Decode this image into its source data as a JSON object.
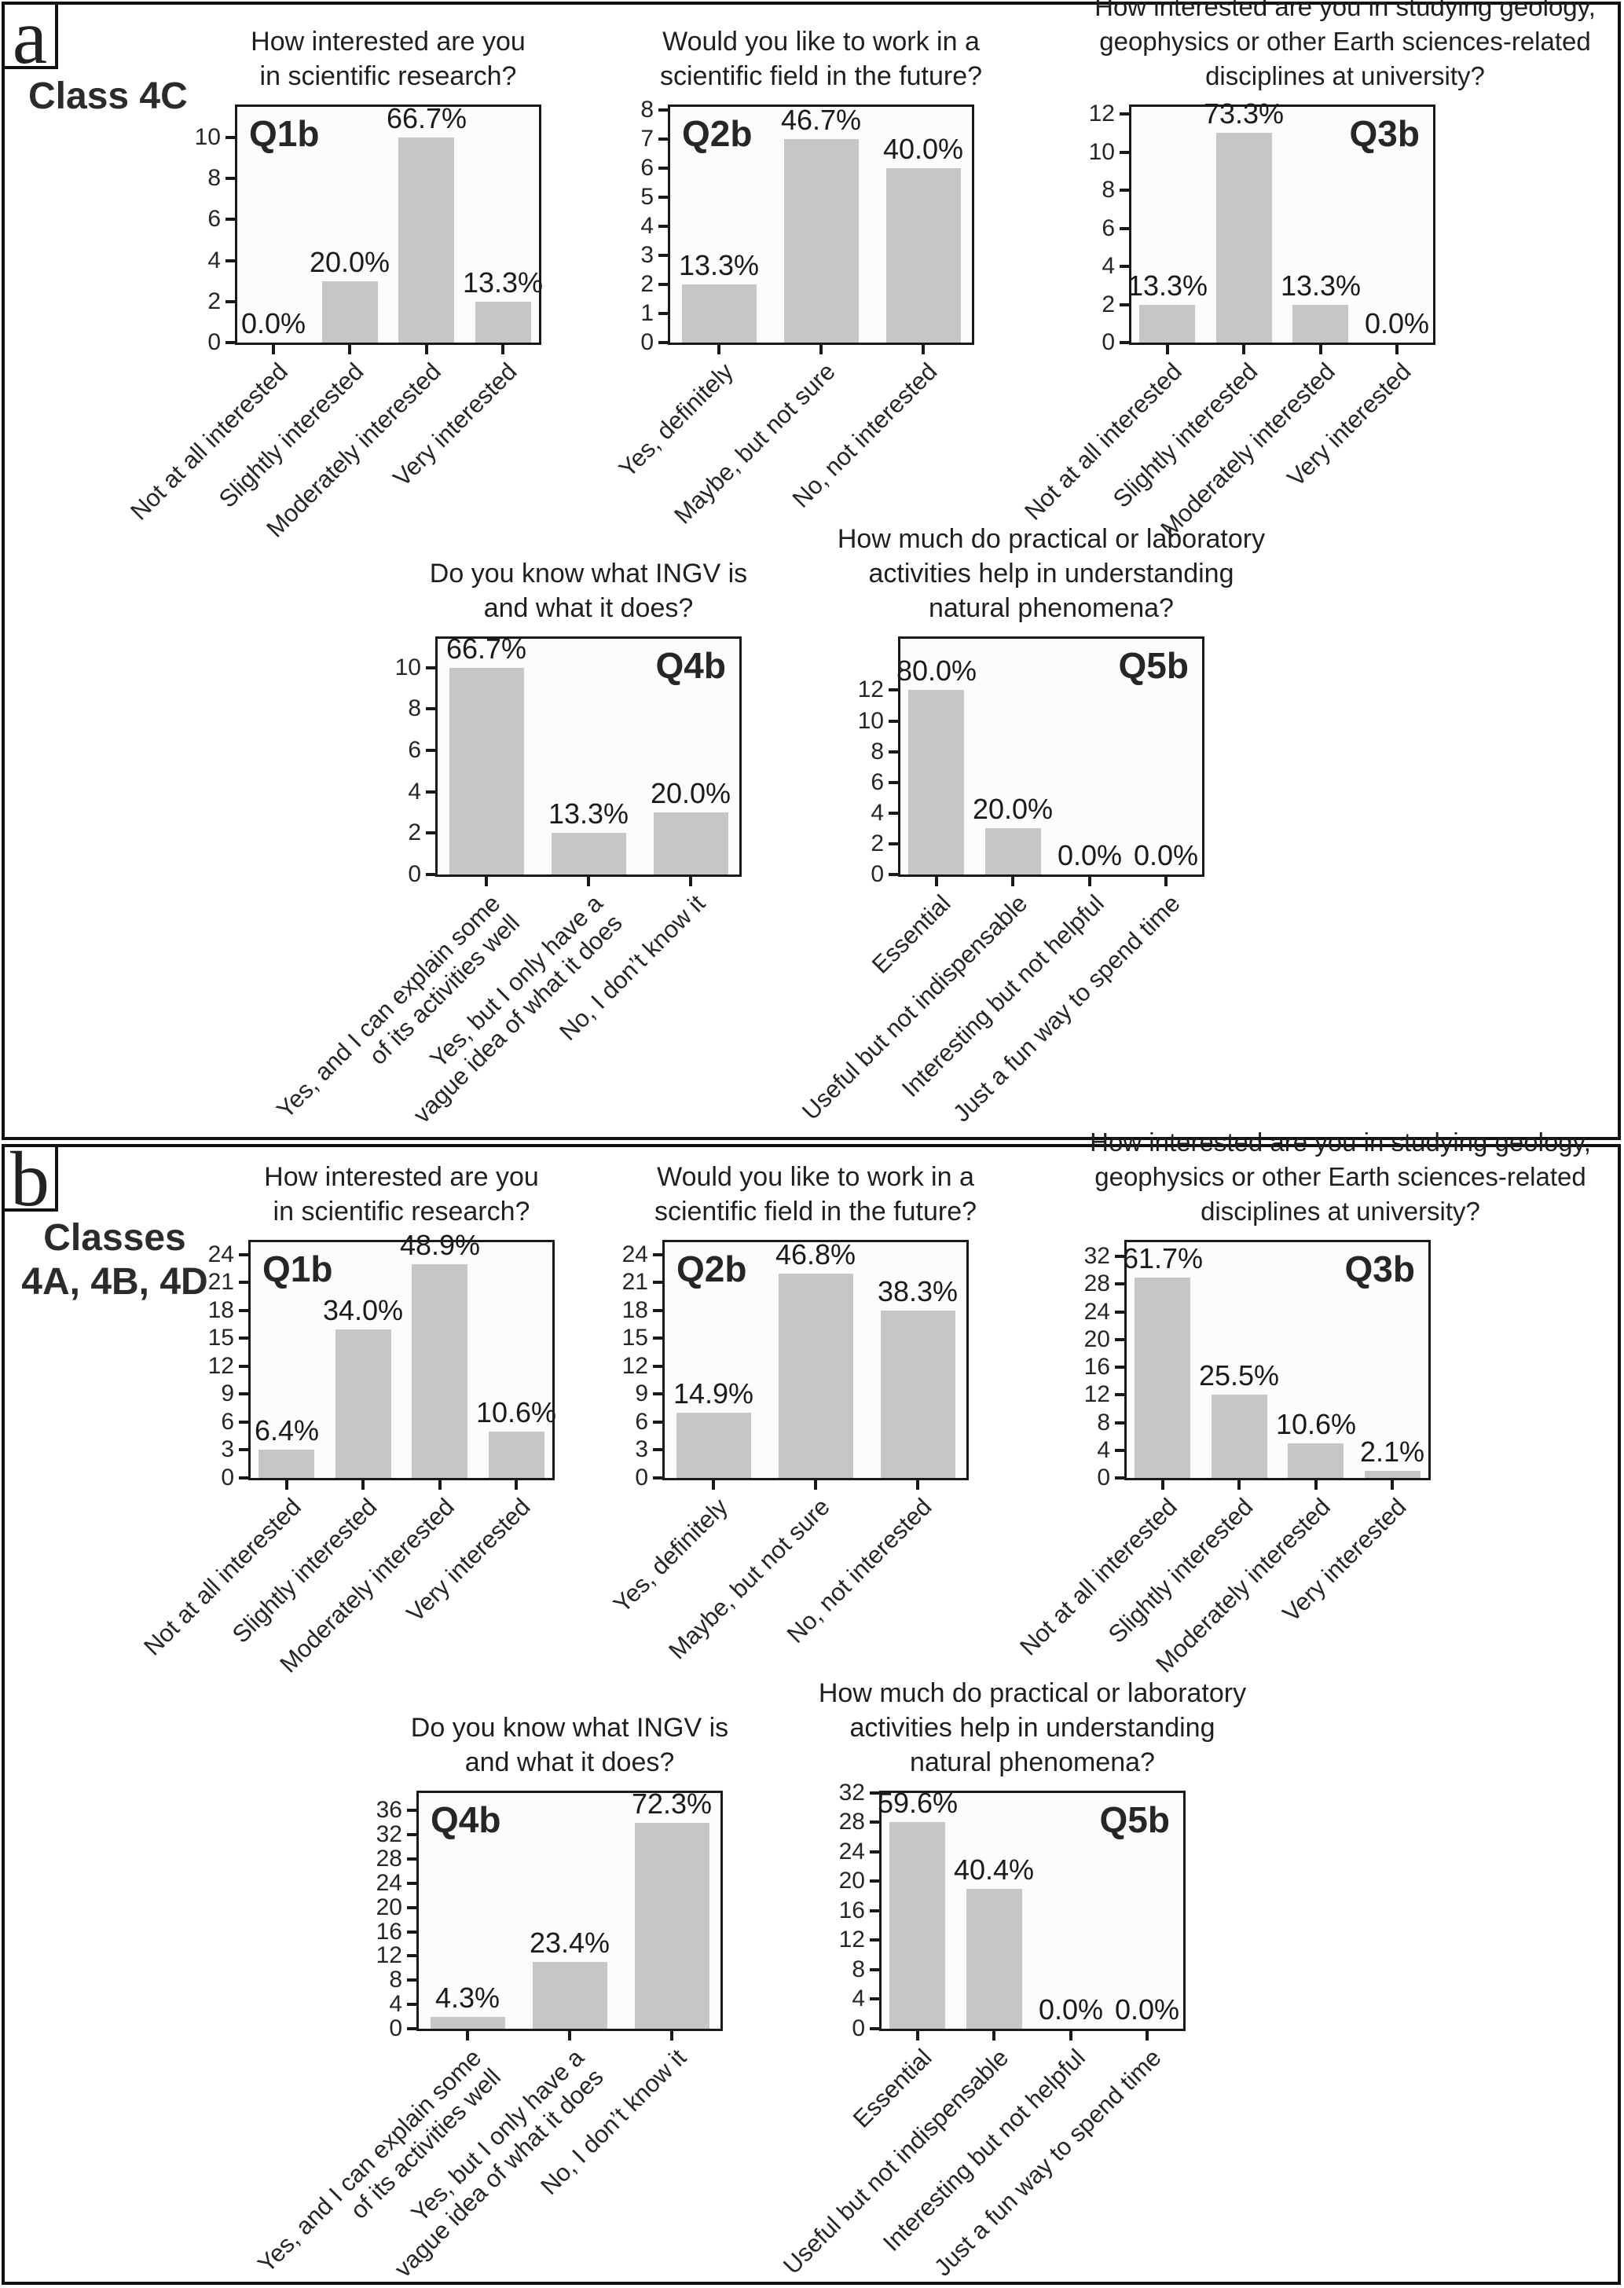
{
  "figure": {
    "panels": [
      {
        "id": "a",
        "corner_label": "a",
        "class_label_lines": [
          "Class 4C"
        ]
      },
      {
        "id": "b",
        "corner_label": "b",
        "class_label_lines": [
          "Classes",
          "4A, 4B, 4D"
        ]
      }
    ]
  },
  "colors": {
    "bar": "#c6c6c6",
    "axis": "#1a1a1a",
    "plot_background": "#fcfcfc",
    "panel_border": "#111111"
  },
  "chart_data": [
    {
      "id": "a-q1b",
      "panel": "a",
      "type": "bar",
      "q_label": "Q1b",
      "q_label_side": "left",
      "title": "How interested are you\nin scientific research?",
      "categories": [
        "Not at all interested",
        "Slightly interested",
        "Moderately interested",
        "Very interested"
      ],
      "values": [
        0,
        3,
        10,
        2
      ],
      "pct_labels": [
        "0.0%",
        "20.0%",
        "66.7%",
        "13.3%"
      ],
      "yticks": [
        0,
        2,
        4,
        6,
        8,
        10
      ],
      "ylim": [
        0,
        11.6
      ],
      "grid": false
    },
    {
      "id": "a-q2b",
      "panel": "a",
      "type": "bar",
      "q_label": "Q2b",
      "q_label_side": "left",
      "title": "Would you like to work in a\nscientific field in the future?",
      "categories": [
        "Yes, definitely",
        "Maybe, but not sure",
        "No, not interested"
      ],
      "values": [
        2,
        7,
        6
      ],
      "pct_labels": [
        "13.3%",
        "46.7%",
        "40.0%"
      ],
      "yticks": [
        0,
        1,
        2,
        3,
        4,
        5,
        6,
        7,
        8
      ],
      "ylim": [
        0,
        8.2
      ],
      "grid": false
    },
    {
      "id": "a-q3b",
      "panel": "a",
      "type": "bar",
      "q_label": "Q3b",
      "q_label_side": "right",
      "title": "How interested are you in studying geology,\ngeophysics or other Earth sciences-related\ndisciplines at university?",
      "categories": [
        "Not at all interested",
        "Slightly interested",
        "Moderately interested",
        "Very interested"
      ],
      "values": [
        2,
        11,
        2,
        0
      ],
      "pct_labels": [
        "13.3%",
        "73.3%",
        "13.3%",
        "0.0%"
      ],
      "yticks": [
        0,
        2,
        4,
        6,
        8,
        10,
        12
      ],
      "ylim": [
        0,
        12.5
      ],
      "grid": false
    },
    {
      "id": "a-q4b",
      "panel": "a",
      "type": "bar",
      "q_label": "Q4b",
      "q_label_side": "right",
      "title": "Do you know what INGV is\nand what it does?",
      "categories": [
        "Yes, and I can explain some\nof its activities well",
        "Yes, but I only have a\nvague idea of what it does",
        "No, I don’t know it"
      ],
      "values": [
        10,
        2,
        3
      ],
      "pct_labels": [
        "66.7%",
        "13.3%",
        "20.0%"
      ],
      "yticks": [
        0,
        2,
        4,
        6,
        8,
        10
      ],
      "ylim": [
        0,
        11.5
      ],
      "grid": false
    },
    {
      "id": "a-q5b",
      "panel": "a",
      "type": "bar",
      "q_label": "Q5b",
      "q_label_side": "right",
      "title": "How much do practical or laboratory\nactivities help in understanding\nnatural phenomena?",
      "categories": [
        "Essential",
        "Useful but not indispensable",
        "Interesting but not helpful",
        "Just a fun way to spend time"
      ],
      "values": [
        12,
        3,
        0,
        0
      ],
      "pct_labels": [
        "80.0%",
        "20.0%",
        "0.0%",
        "0.0%"
      ],
      "yticks": [
        0,
        2,
        4,
        6,
        8,
        10,
        12
      ],
      "ylim": [
        0,
        15.5
      ],
      "grid": false
    },
    {
      "id": "b-q1b",
      "panel": "b",
      "type": "bar",
      "q_label": "Q1b",
      "q_label_side": "left",
      "title": "How interested are you\nin scientific research?",
      "categories": [
        "Not at all interested",
        "Slightly interested",
        "Moderately interested",
        "Very interested"
      ],
      "values": [
        3,
        16,
        23,
        5
      ],
      "pct_labels": [
        "6.4%",
        "34.0%",
        "48.9%",
        "10.6%"
      ],
      "yticks": [
        0,
        3,
        6,
        9,
        12,
        15,
        18,
        21,
        24
      ],
      "ylim": [
        0,
        25.6
      ],
      "grid": false
    },
    {
      "id": "b-q2b",
      "panel": "b",
      "type": "bar",
      "q_label": "Q2b",
      "q_label_side": "left",
      "title": "Would you like to work in a\nscientific field in the future?",
      "categories": [
        "Yes, definitely",
        "Maybe, but not sure",
        "No, not interested"
      ],
      "values": [
        7,
        22,
        18
      ],
      "pct_labels": [
        "14.9%",
        "46.8%",
        "38.3%"
      ],
      "yticks": [
        0,
        3,
        6,
        9,
        12,
        15,
        18,
        21,
        24
      ],
      "ylim": [
        0,
        25.6
      ],
      "grid": false
    },
    {
      "id": "b-q3b",
      "panel": "b",
      "type": "bar",
      "q_label": "Q3b",
      "q_label_side": "right",
      "title": "How interested are you in studying geology,\ngeophysics or other Earth sciences-related\ndisciplines at university?",
      "categories": [
        "Not at all interested",
        "Slightly interested",
        "Moderately interested",
        "Very interested"
      ],
      "values": [
        29,
        12,
        5,
        1
      ],
      "pct_labels": [
        "61.7%",
        "25.5%",
        "10.6%",
        "2.1%"
      ],
      "yticks": [
        0,
        4,
        8,
        12,
        16,
        20,
        24,
        28,
        32
      ],
      "ylim": [
        0,
        34.4
      ],
      "grid": false
    },
    {
      "id": "b-q4b",
      "panel": "b",
      "type": "bar",
      "q_label": "Q4b",
      "q_label_side": "left",
      "title": "Do you know what INGV is\nand what it does?",
      "categories": [
        "Yes, and I can explain some\nof its activities well",
        "Yes, but I only have a\nvague idea of what it does",
        "No, I don’t know it"
      ],
      "values": [
        2,
        11,
        34
      ],
      "pct_labels": [
        "4.3%",
        "23.4%",
        "72.3%"
      ],
      "yticks": [
        0,
        4,
        8,
        12,
        16,
        20,
        24,
        28,
        32,
        36
      ],
      "ylim": [
        0,
        39.3
      ],
      "grid": false
    },
    {
      "id": "b-q5b",
      "panel": "b",
      "type": "bar",
      "q_label": "Q5b",
      "q_label_side": "right",
      "title": "How much do practical or laboratory\nactivities help in understanding\nnatural phenomena?",
      "categories": [
        "Essential",
        "Useful but not indispensable",
        "Interesting but not helpful",
        "Just a fun way to spend time"
      ],
      "values": [
        28,
        19,
        0,
        0
      ],
      "pct_labels": [
        "59.6%",
        "40.4%",
        "0.0%",
        "0.0%"
      ],
      "yticks": [
        0,
        4,
        8,
        12,
        16,
        20,
        24,
        28,
        32
      ],
      "ylim": [
        0,
        32.3
      ],
      "grid": false
    }
  ]
}
